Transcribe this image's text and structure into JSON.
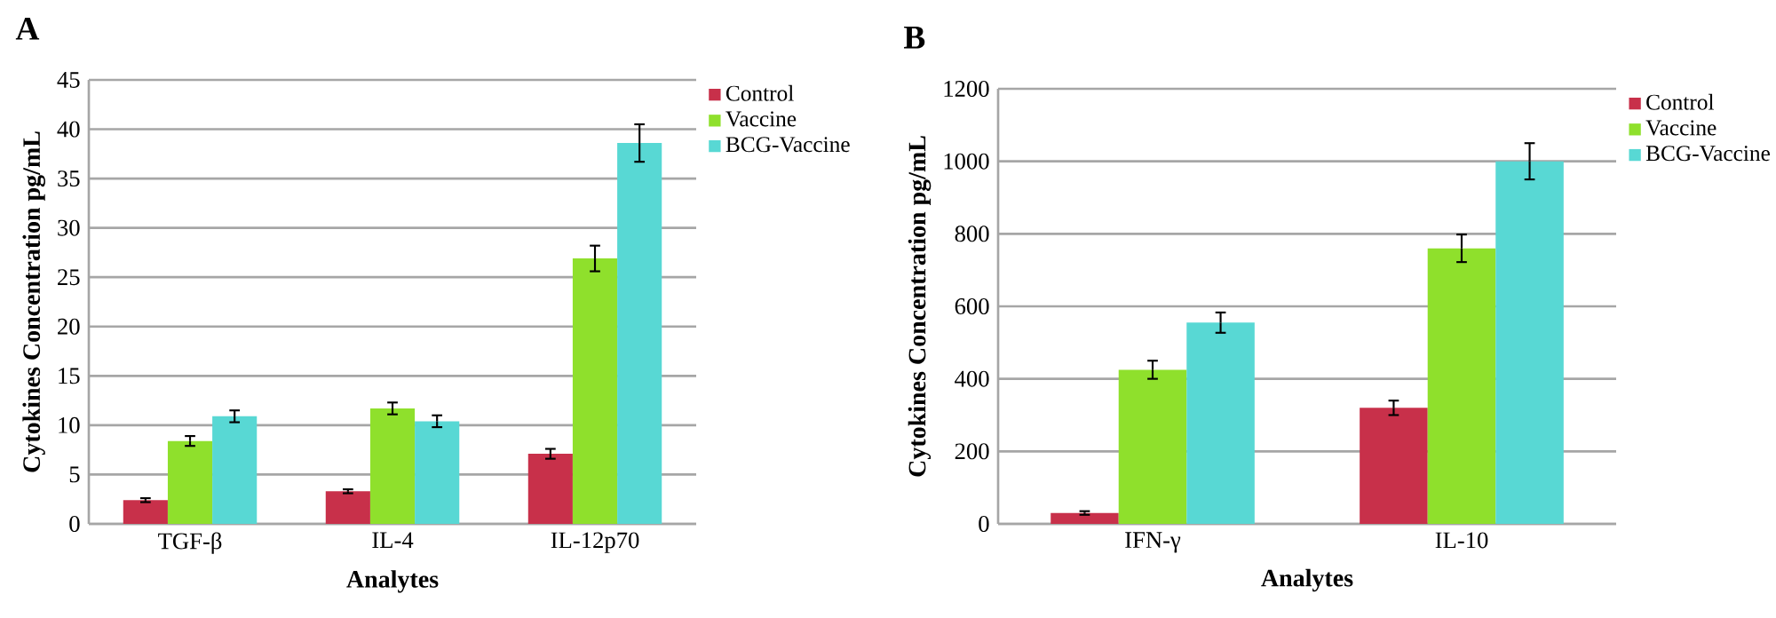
{
  "chart_data": [
    {
      "type": "bar",
      "title": "A",
      "xlabel": "Analytes",
      "ylabel": "Cytokines Concentration pg/mL",
      "categories": [
        "TGF-β",
        "IL-4",
        "IL-12p70"
      ],
      "series": [
        {
          "name": "Control",
          "color": "#c8304a",
          "values": [
            2.4,
            3.3,
            7.1
          ],
          "errors": [
            0.2,
            0.2,
            0.5
          ]
        },
        {
          "name": "Vaccine",
          "color": "#8fe02c",
          "values": [
            8.4,
            11.7,
            26.9
          ],
          "errors": [
            0.5,
            0.6,
            1.3
          ]
        },
        {
          "name": "BCG-Vaccine",
          "color": "#58d8d4",
          "values": [
            10.9,
            10.4,
            38.6
          ],
          "errors": [
            0.6,
            0.6,
            1.9
          ]
        }
      ],
      "ylim": [
        0,
        45
      ],
      "yticks": [
        0,
        5,
        10,
        15,
        20,
        25,
        30,
        35,
        40,
        45
      ],
      "grid": "y",
      "legend": "top right"
    },
    {
      "type": "bar",
      "title": "B",
      "xlabel": "Analytes",
      "ylabel": "Cytokines Concentration pg/mL",
      "categories": [
        "IFN-γ",
        "IL-10"
      ],
      "series": [
        {
          "name": "Control",
          "color": "#c8304a",
          "values": [
            30,
            320
          ],
          "errors": [
            5,
            20
          ]
        },
        {
          "name": "Vaccine",
          "color": "#8fe02c",
          "values": [
            425,
            760
          ],
          "errors": [
            25,
            38
          ]
        },
        {
          "name": "BCG-Vaccine",
          "color": "#58d8d4",
          "values": [
            555,
            1000
          ],
          "errors": [
            28,
            50
          ]
        }
      ],
      "ylim": [
        0,
        1200
      ],
      "yticks": [
        0,
        200,
        400,
        600,
        800,
        1000,
        1200
      ],
      "grid": "y",
      "legend": "top right"
    }
  ]
}
